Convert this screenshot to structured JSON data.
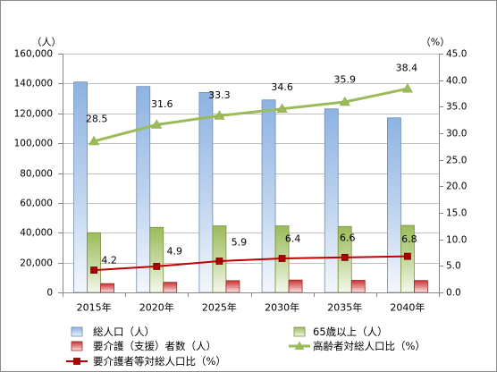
{
  "chart_data": {
    "type": "bar",
    "categories": [
      "2015年",
      "2020年",
      "2025年",
      "2030年",
      "2035年",
      "2040年"
    ],
    "y_axis": {
      "unit": "（人）",
      "range": [
        0,
        160000
      ],
      "tick_labels": [
        "0",
        "20,000",
        "40,000",
        "60,000",
        "80,000",
        "100,000",
        "120,000",
        "140,000",
        "160,000"
      ]
    },
    "y2_axis": {
      "unit": "（%）",
      "range": [
        0,
        45
      ],
      "tick_labels": [
        "0.0",
        "5.0",
        "10.0",
        "15.0",
        "20.0",
        "25.0",
        "30.0",
        "35.0",
        "40.0",
        "45.0"
      ]
    },
    "series": [
      {
        "name": "総人口（人）",
        "type": "bar",
        "axis": "left",
        "color": "#8db3e2",
        "values": [
          141000,
          138000,
          134000,
          129000,
          123000,
          117000
        ]
      },
      {
        "name": "65歳以上（人）",
        "type": "bar",
        "axis": "left",
        "color": "#9bbb59",
        "values": [
          40000,
          43600,
          44600,
          44600,
          44200,
          44900
        ]
      },
      {
        "name": "要介護（支援）者数（人）",
        "type": "bar",
        "axis": "left",
        "color": "#cc3333",
        "values": [
          5900,
          6800,
          7900,
          8300,
          8100,
          8000
        ]
      },
      {
        "name": "高齢者対総人口比（%）",
        "type": "line",
        "axis": "right",
        "color": "#9bbb59",
        "marker": "triangle",
        "values": [
          28.5,
          31.6,
          33.3,
          34.6,
          35.9,
          38.4
        ]
      },
      {
        "name": "要介護者等対総人口比（%）",
        "type": "line",
        "axis": "right",
        "color": "#c00000",
        "marker": "square",
        "values": [
          4.2,
          4.9,
          5.9,
          6.4,
          6.6,
          6.8
        ]
      }
    ],
    "grid": true,
    "legend": "bottom"
  }
}
